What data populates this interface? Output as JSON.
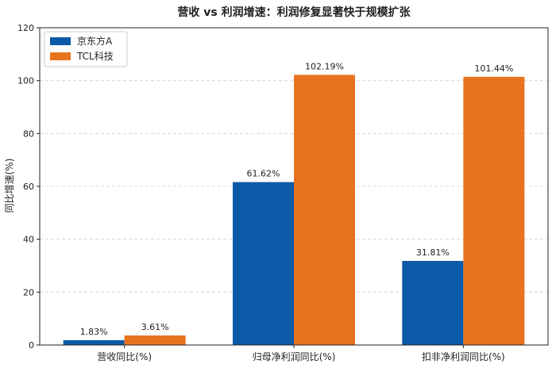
{
  "chart_data": {
    "type": "bar",
    "title": "营收 vs 利润增速：利润修复显著快于规模扩张",
    "xlabel": "",
    "ylabel": "同比增速(%)",
    "ylim": [
      0,
      120
    ],
    "yticks": [
      0,
      20,
      40,
      60,
      80,
      100,
      120
    ],
    "grid": "horizontal dashed",
    "legend_position": "top-left",
    "categories": [
      "营收同比(%)",
      "归母净利润同比(%)",
      "扣非净利润同比(%)"
    ],
    "series": [
      {
        "name": "京东方A",
        "color": "#0b5aa7",
        "values": [
          1.83,
          61.62,
          31.81
        ],
        "labels": [
          "1.83%",
          "61.62%",
          "31.81%"
        ]
      },
      {
        "name": "TCL科技",
        "color": "#e8731f",
        "values": [
          3.61,
          102.19,
          101.44
        ],
        "labels": [
          "3.61%",
          "102.19%",
          "101.44%"
        ]
      }
    ]
  }
}
